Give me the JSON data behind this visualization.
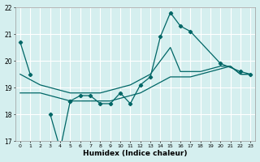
{
  "xlabel": "Humidex (Indice chaleur)",
  "xlim": [
    -0.5,
    23.5
  ],
  "ylim": [
    17,
    22
  ],
  "yticks": [
    17,
    18,
    19,
    20,
    21,
    22
  ],
  "xticks": [
    0,
    1,
    2,
    3,
    4,
    5,
    6,
    7,
    8,
    9,
    10,
    11,
    12,
    13,
    14,
    15,
    16,
    17,
    18,
    19,
    20,
    21,
    22,
    23
  ],
  "background_color": "#d5efef",
  "grid_color": "#ffffff",
  "line_color": "#006666",
  "seg_marker": [
    {
      "x": [
        0,
        1
      ],
      "y": [
        20.7,
        19.5
      ]
    },
    {
      "x": [
        3,
        4,
        5
      ],
      "y": [
        18.0,
        16.7,
        18.5
      ]
    },
    {
      "x": [
        5,
        6,
        7,
        8,
        9,
        10,
        11,
        12,
        13,
        14,
        15,
        16,
        17,
        20,
        22,
        23
      ],
      "y": [
        18.5,
        18.7,
        18.7,
        18.4,
        18.4,
        18.8,
        18.4,
        19.1,
        19.4,
        20.9,
        21.8,
        21.3,
        21.1,
        19.9,
        19.6,
        19.5
      ]
    }
  ],
  "seg_smooth1_x": [
    0,
    1,
    2,
    3,
    5,
    6,
    7,
    8,
    9,
    10,
    11,
    12,
    13,
    14,
    15,
    16,
    17,
    18,
    19,
    20,
    21,
    22,
    23
  ],
  "seg_smooth1_y": [
    19.5,
    19.3,
    19.1,
    19.0,
    18.8,
    18.8,
    18.8,
    18.8,
    18.9,
    19.0,
    19.1,
    19.3,
    19.5,
    20.0,
    20.5,
    19.6,
    19.6,
    19.6,
    19.7,
    19.8,
    19.8,
    19.5,
    19.5
  ],
  "seg_smooth2_x": [
    0,
    1,
    2,
    3,
    5,
    6,
    7,
    8,
    9,
    10,
    11,
    12,
    13,
    14,
    15,
    16,
    17,
    18,
    19,
    20,
    21,
    22,
    23
  ],
  "seg_smooth2_y": [
    18.8,
    18.8,
    18.8,
    18.7,
    18.5,
    18.5,
    18.5,
    18.5,
    18.5,
    18.6,
    18.7,
    18.8,
    19.0,
    19.2,
    19.4,
    19.4,
    19.4,
    19.5,
    19.6,
    19.7,
    19.8,
    19.5,
    19.5
  ]
}
